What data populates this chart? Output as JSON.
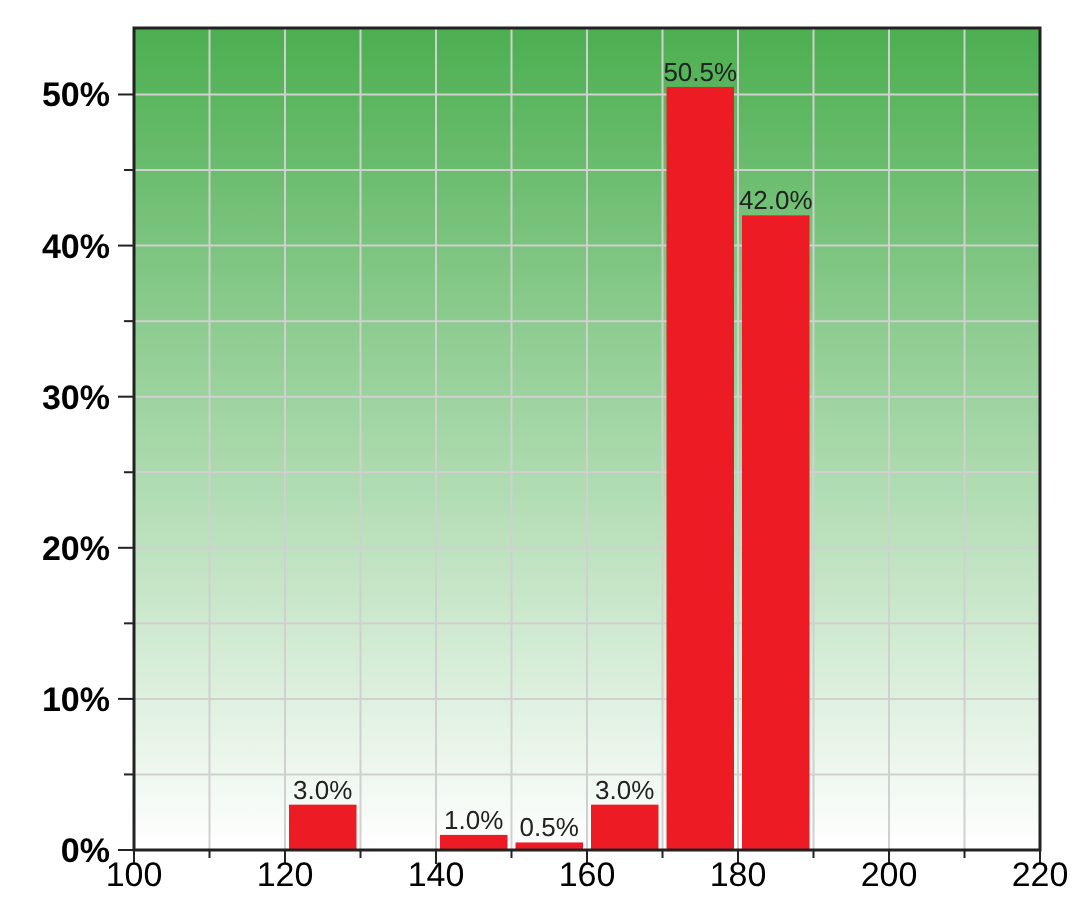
{
  "chart_data": {
    "type": "histogram",
    "bins": [
      100,
      110,
      120,
      130,
      140,
      150,
      160,
      170,
      180,
      190,
      200,
      210,
      220
    ],
    "values": [
      0,
      0,
      3.0,
      0,
      1.0,
      0.5,
      3.0,
      50.5,
      42.0,
      0,
      0,
      0
    ],
    "value_labels": [
      null,
      null,
      "3.0%",
      null,
      "1.0%",
      "0.5%",
      "3.0%",
      "50.5%",
      "42.0%",
      null,
      null,
      null
    ],
    "color": "#ed1c24",
    "xlim": [
      100,
      220
    ],
    "xticks": [
      100,
      {
        "value": 110,
        "label": null
      },
      120,
      {
        "value": 130,
        "label": null
      },
      140,
      {
        "value": 150,
        "label": null
      },
      160,
      {
        "value": 170,
        "label": null
      },
      180,
      {
        "value": 190,
        "label": null
      },
      200,
      {
        "value": 210,
        "label": null
      },
      220
    ],
    "ylim": [
      0,
      54.4
    ],
    "yticks": [
      {
        "value": 0,
        "label": "0%"
      },
      {
        "value": 5,
        "label": null
      },
      {
        "value": 10,
        "label": "10%"
      },
      {
        "value": 15,
        "label": null
      },
      {
        "value": 20,
        "label": "20%"
      },
      {
        "value": 25,
        "label": null
      },
      {
        "value": 30,
        "label": "30%"
      },
      {
        "value": 35,
        "label": null
      },
      {
        "value": 40,
        "label": "40%"
      },
      {
        "value": 45,
        "label": null
      },
      {
        "value": 50,
        "label": "50%"
      }
    ],
    "grid": true
  }
}
